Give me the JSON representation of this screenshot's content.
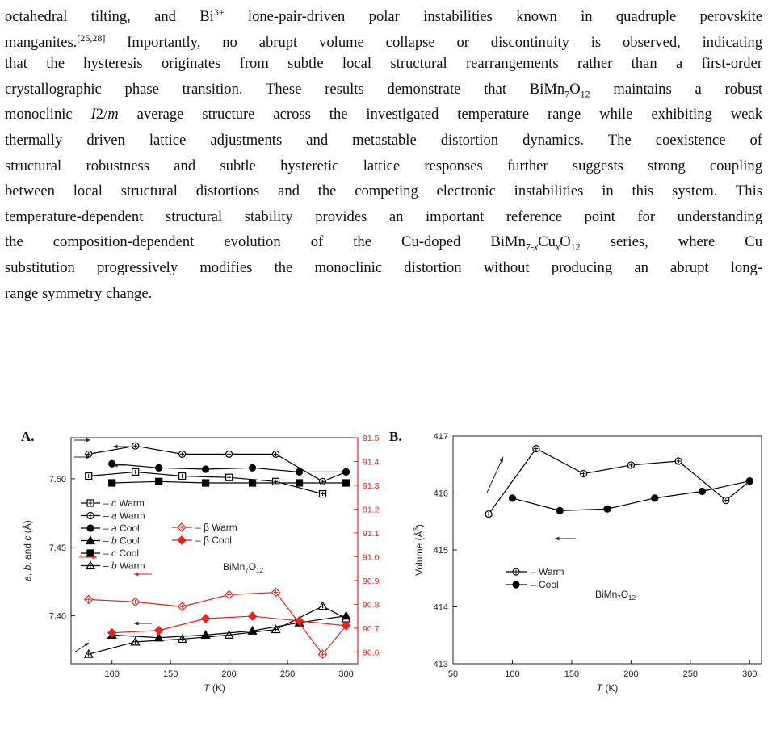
{
  "paragraph": {
    "lines": [
      [
        "octahedral tilting, and Bi",
        {
          "sup": "3+"
        },
        " lone-pair-driven polar instabilities known in quadruple perovskite"
      ],
      [
        "manganites.",
        {
          "sup": "[25,28]"
        },
        " Importantly, no abrupt volume collapse or discontinuity is observed, indicating"
      ],
      [
        "that the hysteresis originates from subtle local structural rearrangements rather than a first-order"
      ],
      [
        "crystallographic phase transition. These results demonstrate that BiMn",
        {
          "sub": "7"
        },
        "O",
        {
          "sub": "12"
        },
        " maintains a robust"
      ],
      [
        "monoclinic ",
        {
          "i": "I"
        },
        "2/",
        {
          "i": "m"
        },
        " average structure across the investigated temperature range while exhibiting weak"
      ],
      [
        "thermally driven lattice adjustments and metastable distortion dynamics. The coexistence of"
      ],
      [
        "structural robustness and subtle hysteretic lattice responses further suggests strong coupling"
      ],
      [
        "between local structural distortions and the competing electronic instabilities in this system. This"
      ],
      [
        "temperature-dependent structural stability provides an important reference point for understanding"
      ],
      [
        "the composition-dependent evolution of the Cu-doped BiMn",
        {
          "sub": "7-"
        },
        {
          "isub": "x"
        },
        "Cu",
        {
          "isub": "x"
        },
        "O",
        {
          "sub": "12"
        },
        " series, where Cu"
      ],
      [
        "substitution progressively modifies the monoclinic distortion without producing an abrupt long-"
      ],
      [
        "range symmetry change."
      ]
    ]
  },
  "figure": {
    "panel_a_label": "A.",
    "panel_b_label": "B.",
    "panel_a_annotation": "BiMn7O12",
    "panel_b_annotation": "BiMn7O12"
  },
  "chart_data": [
    {
      "type": "line",
      "panel": "A",
      "xlabel": "T (K)",
      "ylabel": "a, b, and c (Å)",
      "y2label": "β",
      "xlim": [
        65,
        310
      ],
      "ylim": [
        7.365,
        7.53
      ],
      "y2lim": [
        90.55,
        91.5
      ],
      "xticks": [
        100,
        150,
        200,
        250,
        300
      ],
      "yticks": [
        7.4,
        7.45,
        7.5
      ],
      "y2ticks": [
        90.6,
        90.7,
        90.8,
        90.9,
        91.0,
        91.1,
        91.2,
        91.3,
        91.4,
        91.5
      ],
      "legend_left": [
        "c Warm",
        "a Warm",
        "a Cool",
        "b Cool",
        "c Cool",
        "b Warm"
      ],
      "legend_right": [
        "β Warm",
        "β Cool"
      ],
      "series": [
        {
          "name": "a Warm",
          "axis": "left",
          "marker": "circle-plus",
          "color": "#000000",
          "x": [
            80,
            120,
            160,
            200,
            240,
            280,
            300
          ],
          "y": [
            7.518,
            7.524,
            7.518,
            7.518,
            7.518,
            7.498,
            7.505
          ]
        },
        {
          "name": "a Cool",
          "axis": "left",
          "marker": "circle-filled",
          "color": "#000000",
          "x": [
            100,
            140,
            180,
            220,
            260,
            300
          ],
          "y": [
            7.511,
            7.508,
            7.507,
            7.508,
            7.505,
            7.505
          ]
        },
        {
          "name": "c Warm",
          "axis": "left",
          "marker": "square-plus",
          "color": "#000000",
          "x": [
            80,
            120,
            160,
            200,
            240,
            280
          ],
          "y": [
            7.502,
            7.505,
            7.502,
            7.501,
            7.498,
            7.489
          ]
        },
        {
          "name": "c Cool",
          "axis": "left",
          "marker": "square-filled",
          "color": "#000000",
          "x": [
            100,
            140,
            180,
            220,
            260,
            300
          ],
          "y": [
            7.497,
            7.498,
            7.497,
            7.497,
            7.497,
            7.497
          ]
        },
        {
          "name": "b Warm",
          "axis": "left",
          "marker": "triangle-plus",
          "color": "#000000",
          "x": [
            80,
            120,
            160,
            200,
            240,
            280,
            300
          ],
          "y": [
            7.372,
            7.381,
            7.383,
            7.386,
            7.39,
            7.407,
            7.398
          ]
        },
        {
          "name": "b Cool",
          "axis": "left",
          "marker": "triangle-filled",
          "color": "#000000",
          "x": [
            100,
            140,
            180,
            220,
            260,
            300
          ],
          "y": [
            7.386,
            7.384,
            7.386,
            7.389,
            7.395,
            7.4
          ]
        },
        {
          "name": "β Warm",
          "axis": "right",
          "marker": "diamond-plus",
          "color": "#e8231e",
          "x": [
            80,
            120,
            160,
            200,
            240,
            280,
            300
          ],
          "y": [
            90.82,
            90.81,
            90.79,
            90.84,
            90.85,
            90.59,
            90.71
          ]
        },
        {
          "name": "β Cool",
          "axis": "right",
          "marker": "diamond-filled",
          "color": "#e8231e",
          "x": [
            100,
            140,
            180,
            220,
            260,
            300
          ],
          "y": [
            90.68,
            90.69,
            90.74,
            90.75,
            90.73,
            90.71
          ]
        }
      ]
    },
    {
      "type": "line",
      "panel": "B",
      "xlabel": "T (K)",
      "ylabel": "Volume (Å3)",
      "xlim": [
        50,
        310
      ],
      "ylim": [
        413,
        417
      ],
      "xticks": [
        50,
        100,
        150,
        200,
        250,
        300
      ],
      "yticks": [
        413,
        414,
        415,
        416,
        417
      ],
      "legend": [
        "Warm",
        "Cool"
      ],
      "series": [
        {
          "name": "Warm",
          "marker": "circle-plus",
          "color": "#000000",
          "x": [
            80,
            120,
            160,
            200,
            240,
            280,
            300
          ],
          "y": [
            415.63,
            416.78,
            416.34,
            416.49,
            416.56,
            415.87,
            416.21
          ]
        },
        {
          "name": "Cool",
          "marker": "circle-filled",
          "color": "#000000",
          "x": [
            100,
            140,
            180,
            220,
            260,
            300
          ],
          "y": [
            415.91,
            415.69,
            415.72,
            415.91,
            416.03,
            416.21
          ]
        }
      ]
    }
  ]
}
